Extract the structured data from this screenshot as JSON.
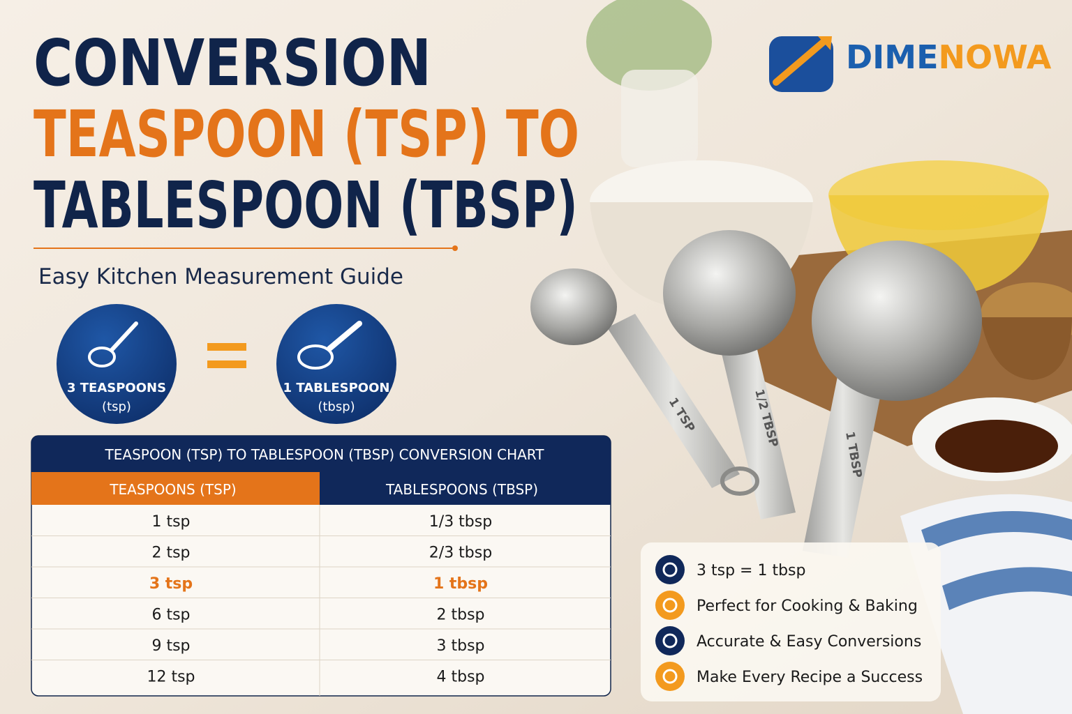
{
  "logo": {
    "parts": [
      "DIME",
      "NOWA"
    ]
  },
  "header": {
    "title_lines": [
      "CONVERSION",
      "TEASPOON (TSP) TO",
      "TABLESPOON (TBSP)"
    ],
    "subtitle": "Easy Kitchen Measurement Guide"
  },
  "equation": {
    "left": [
      "3 TEASPOONS",
      "(tsp)"
    ],
    "right": [
      "1 TABLESPOON",
      "(tbsp)"
    ]
  },
  "table": {
    "title": "TEASPOON (TSP) TO TABLESPOON (TBSP) CONVERSION CHART",
    "headers": [
      "TEASPOONS (TSP)",
      "TABLESPOONS (TBSP)"
    ],
    "rows": [
      [
        "1 tsp",
        "1/3 tbsp"
      ],
      [
        "2 tsp",
        "2/3 tbsp"
      ],
      [
        "3 tsp",
        "1 tbsp"
      ],
      [
        "6 tsp",
        "2 tbsp"
      ],
      [
        "9 tsp",
        "3 tbsp"
      ],
      [
        "12 tsp",
        "4 tbsp"
      ]
    ],
    "highlight_row": 2
  },
  "features": [
    "3 tsp = 1 tbsp",
    "Perfect for Cooking & Baking",
    "Accurate & Easy Conversions",
    "Make Every Recipe a Success"
  ],
  "spoon_labels": [
    "1 TSP",
    "1/2 TBSP",
    "1 TBSP"
  ]
}
